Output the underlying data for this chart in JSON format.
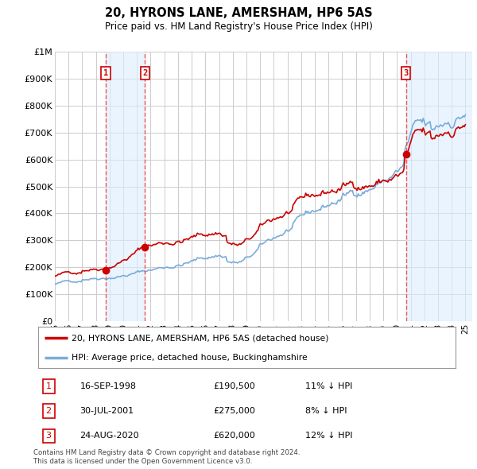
{
  "title": "20, HYRONS LANE, AMERSHAM, HP6 5AS",
  "subtitle": "Price paid vs. HM Land Registry's House Price Index (HPI)",
  "ylim": [
    0,
    1000000
  ],
  "yticks": [
    0,
    100000,
    200000,
    300000,
    400000,
    500000,
    600000,
    700000,
    800000,
    900000,
    1000000
  ],
  "ytick_labels": [
    "£0",
    "£100K",
    "£200K",
    "£300K",
    "£400K",
    "£500K",
    "£600K",
    "£700K",
    "£800K",
    "£900K",
    "£1M"
  ],
  "background_color": "#ffffff",
  "grid_color": "#cccccc",
  "sale_color": "#cc0000",
  "hpi_color": "#7aacda",
  "hpi_fill_color": "#ddeeff",
  "vline_color": "#ee4444",
  "shade_color": "#ddeeff",
  "legend_sale_label": "20, HYRONS LANE, AMERSHAM, HP6 5AS (detached house)",
  "legend_hpi_label": "HPI: Average price, detached house, Buckinghamshire",
  "transactions": [
    {
      "num": 1,
      "date": "16-SEP-1998",
      "price": 190500,
      "hpi_pct": "11%",
      "year": 1998.71
    },
    {
      "num": 2,
      "date": "30-JUL-2001",
      "price": 275000,
      "hpi_pct": "8%",
      "year": 2001.58
    },
    {
      "num": 3,
      "date": "24-AUG-2020",
      "price": 620000,
      "hpi_pct": "12%",
      "year": 2020.65
    }
  ],
  "footnote": "Contains HM Land Registry data © Crown copyright and database right 2024.\nThis data is licensed under the Open Government Licence v3.0.",
  "xlim_start": 1995.0,
  "xlim_end": 2025.5
}
